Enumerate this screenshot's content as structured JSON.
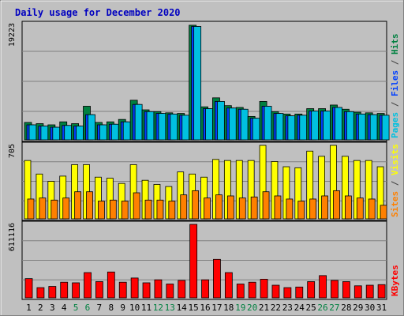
{
  "chart_data": {
    "type": "bar",
    "title": "Daily usage for December 2020",
    "x": [
      "1",
      "2",
      "3",
      "4",
      "5",
      "6",
      "7",
      "8",
      "9",
      "10",
      "11",
      "12",
      "13",
      "14",
      "15",
      "16",
      "17",
      "18",
      "19",
      "20",
      "21",
      "22",
      "23",
      "24",
      "25",
      "26",
      "27",
      "28",
      "29",
      "30",
      "31"
    ],
    "weekend_days": [
      "5",
      "6",
      "12",
      "13",
      "19",
      "20",
      "26",
      "27"
    ],
    "panels": [
      {
        "id": "pages-files-hits",
        "ymax_label": "19223",
        "ymax": 19223,
        "side_label": [
          {
            "text": "Pages",
            "color": "#00c0e0"
          },
          {
            "text": " / ",
            "color": "#404040"
          },
          {
            "text": "Files",
            "color": "#0040ff"
          },
          {
            "text": " / ",
            "color": "#404040"
          },
          {
            "text": "Hits",
            "color": "#008040"
          }
        ],
        "series": [
          {
            "name": "Hits",
            "color": "#008040",
            "values": [
              2900,
              2700,
              2500,
              3000,
              2700,
              5600,
              2900,
              3000,
              3400,
              6600,
              5000,
              4700,
              4500,
              4400,
              19100,
              5500,
              7000,
              5700,
              5400,
              3900,
              6400,
              4700,
              4300,
              4300,
              5200,
              5200,
              5800,
              5100,
              4600,
              4500,
              4400
            ]
          },
          {
            "name": "Files",
            "color": "#0040ff",
            "values": [
              2500,
              2300,
              2100,
              2400,
              2300,
              4200,
              2500,
              2600,
              3000,
              5900,
              4700,
              4400,
              4300,
              4100,
              18900,
              5200,
              6400,
              5300,
              5100,
              3600,
              5600,
              4400,
              4000,
              4100,
              4800,
              4800,
              5400,
              4700,
              4300,
              4200,
              4100
            ]
          },
          {
            "name": "Pages",
            "color": "#00c0e0",
            "values": [
              2500,
              2300,
              2100,
              2400,
              2300,
              4200,
              2500,
              2600,
              3000,
              5900,
              4700,
              4400,
              4300,
              4100,
              18900,
              5200,
              6400,
              5300,
              5100,
              3600,
              5600,
              4400,
              4000,
              4100,
              4800,
              4800,
              5400,
              4700,
              4300,
              4200,
              4100
            ]
          }
        ]
      },
      {
        "id": "visits-sites",
        "ymax_label": "705",
        "ymax": 705,
        "side_label": [
          {
            "text": "Sites",
            "color": "#ff8000"
          },
          {
            "text": " / ",
            "color": "#404040"
          },
          {
            "text": "Visits",
            "color": "#ffff00"
          }
        ],
        "series": [
          {
            "name": "Visits",
            "color": "#ffff00",
            "values": [
              560,
              430,
              360,
              410,
              520,
              520,
              400,
              390,
              340,
              520,
              370,
              330,
              310,
              450,
              430,
              400,
              570,
              560,
              560,
              560,
              705,
              550,
              500,
              490,
              650,
              600,
              705,
              600,
              560,
              560,
              500
            ]
          },
          {
            "name": "Sites",
            "color": "#ff8000",
            "values": [
              190,
              200,
              180,
              200,
              260,
              260,
              170,
              180,
              170,
              250,
              180,
              180,
              170,
              230,
              270,
              200,
              230,
              220,
              200,
              210,
              260,
              220,
              190,
              170,
              190,
              220,
              270,
              220,
              200,
              190,
              130
            ]
          }
        ]
      },
      {
        "id": "kbytes",
        "ymax_label": "611116",
        "ymax": 611116,
        "side_label": [
          {
            "text": "KBytes",
            "color": "#ff0000"
          }
        ],
        "series": [
          {
            "name": "KBytes",
            "color": "#ff0000",
            "values": [
              160000,
              85000,
              95000,
              130000,
              125000,
              210000,
              135000,
              215000,
              130000,
              165000,
              125000,
              150000,
              115000,
              145000,
              611116,
              150000,
              320000,
              210000,
              115000,
              130000,
              155000,
              105000,
              85000,
              90000,
              135000,
              185000,
              145000,
              135000,
              100000,
              105000,
              110000
            ]
          }
        ]
      }
    ]
  }
}
